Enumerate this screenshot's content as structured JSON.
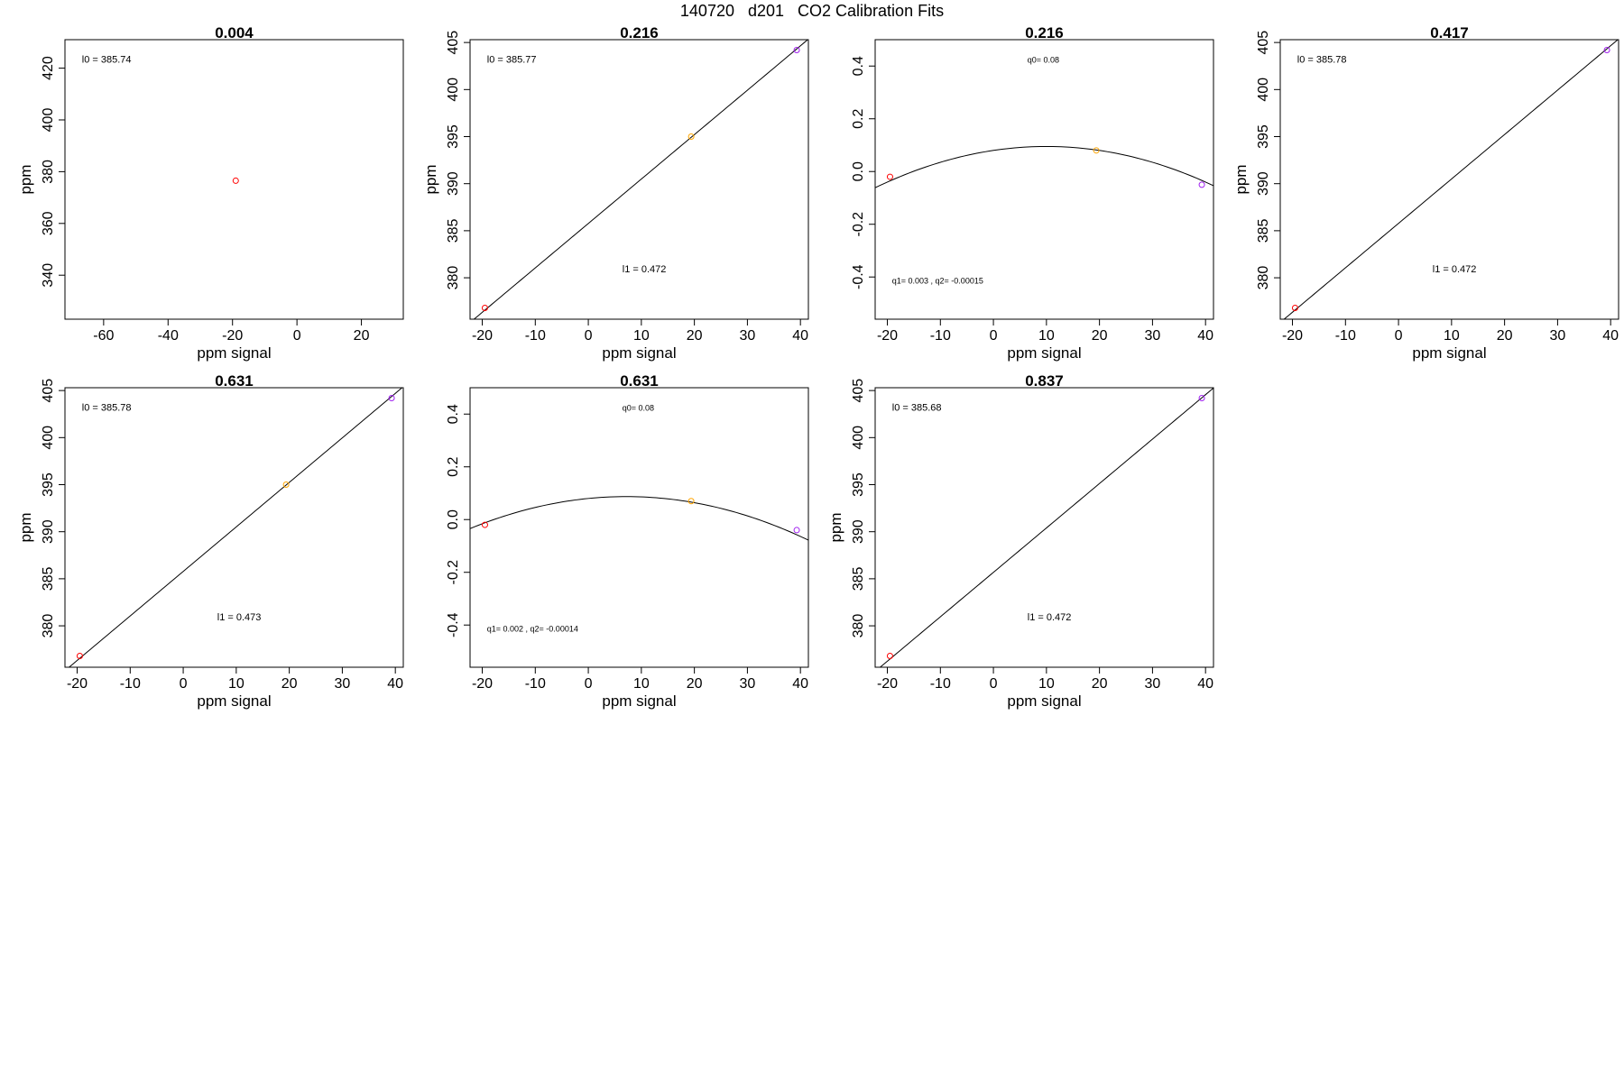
{
  "figure": {
    "title": "140720   d201   CO2 Calibration Fits"
  },
  "chart_data": [
    {
      "type": "scatter",
      "title": "0.004",
      "xlabel": "ppm signal",
      "ylabel": "ppm",
      "xlim": [
        -72,
        33
      ],
      "ylim": [
        323,
        431
      ],
      "xticks": [
        -60,
        -40,
        -20,
        0,
        20
      ],
      "xtick_labels": [
        "-60",
        "-40",
        "-20",
        "0",
        "20"
      ],
      "yticks": [
        340,
        360,
        380,
        400,
        420
      ],
      "ytick_labels": [
        "340",
        "360",
        "380",
        "400",
        "420"
      ],
      "points": [
        {
          "x": -19,
          "y": 376.5,
          "color": "#ff0000"
        }
      ],
      "fit": null,
      "annotations": [
        {
          "text": "l0 =  385.74",
          "ax": 0.05,
          "ay": 0.07,
          "size": 11
        }
      ]
    },
    {
      "type": "scatter",
      "title": "0.216",
      "xlabel": "ppm signal",
      "ylabel": "ppm",
      "xlim": [
        -22.3,
        41.5
      ],
      "ylim": [
        375.6,
        405.3
      ],
      "xticks": [
        -20,
        -10,
        0,
        10,
        20,
        30,
        40
      ],
      "xtick_labels": [
        "-20",
        "-10",
        "0",
        "10",
        "20",
        "30",
        "40"
      ],
      "yticks": [
        380,
        385,
        390,
        395,
        400,
        405
      ],
      "ytick_labels": [
        "380",
        "385",
        "390",
        "395",
        "400",
        "405"
      ],
      "points": [
        {
          "x": -19.5,
          "y": 376.8,
          "color": "#ff0000"
        },
        {
          "x": 19.4,
          "y": 395.0,
          "color": "#ffa500"
        },
        {
          "x": 39.3,
          "y": 404.2,
          "color": "#a020f0"
        }
      ],
      "fit": {
        "kind": "linear",
        "intercept": 385.77,
        "slope": 0.472
      },
      "annotations": [
        {
          "text": "l0 =  385.77",
          "ax": 0.05,
          "ay": 0.07,
          "size": 11
        },
        {
          "text": "l1 =  0.472",
          "ax": 0.45,
          "ay": 0.82,
          "size": 11
        }
      ]
    },
    {
      "type": "scatter",
      "title": "0.216",
      "xlabel": "ppm signal",
      "ylabel": "",
      "xlim": [
        -22.3,
        41.5
      ],
      "ylim": [
        -0.56,
        0.5
      ],
      "xticks": [
        -20,
        -10,
        0,
        10,
        20,
        30,
        40
      ],
      "xtick_labels": [
        "-20",
        "-10",
        "0",
        "10",
        "20",
        "30",
        "40"
      ],
      "yticks": [
        -0.4,
        -0.2,
        0.0,
        0.2,
        0.4
      ],
      "ytick_labels": [
        "-0.4",
        "-0.2",
        "0.0",
        "0.2",
        "0.4"
      ],
      "points": [
        {
          "x": -19.5,
          "y": -0.02,
          "color": "#ff0000"
        },
        {
          "x": 19.4,
          "y": 0.08,
          "color": "#ffa500"
        },
        {
          "x": 39.3,
          "y": -0.05,
          "color": "#a020f0"
        }
      ],
      "fit": {
        "kind": "quadratic",
        "q0": 0.08,
        "q1": 0.003,
        "q2": -0.00015
      },
      "annotations": [
        {
          "text": "q0= 0.08",
          "ax": 0.45,
          "ay": 0.07,
          "size": 9
        },
        {
          "text": "q1= 0.003 , q2= -0.00015",
          "ax": 0.05,
          "ay": 0.86,
          "size": 9
        }
      ]
    },
    {
      "type": "scatter",
      "title": "0.417",
      "xlabel": "ppm signal",
      "ylabel": "ppm",
      "xlim": [
        -22.3,
        41.5
      ],
      "ylim": [
        375.6,
        405.3
      ],
      "xticks": [
        -20,
        -10,
        0,
        10,
        20,
        30,
        40
      ],
      "xtick_labels": [
        "-20",
        "-10",
        "0",
        "10",
        "20",
        "30",
        "40"
      ],
      "yticks": [
        380,
        385,
        390,
        395,
        400,
        405
      ],
      "ytick_labels": [
        "380",
        "385",
        "390",
        "395",
        "400",
        "405"
      ],
      "points": [
        {
          "x": -19.5,
          "y": 376.8,
          "color": "#ff0000"
        },
        {
          "x": 39.3,
          "y": 404.2,
          "color": "#a020f0"
        }
      ],
      "fit": {
        "kind": "linear",
        "intercept": 385.78,
        "slope": 0.472
      },
      "annotations": [
        {
          "text": "l0 =  385.78",
          "ax": 0.05,
          "ay": 0.07,
          "size": 11
        },
        {
          "text": "l1 =  0.472",
          "ax": 0.45,
          "ay": 0.82,
          "size": 11
        }
      ]
    },
    {
      "type": "scatter",
      "title": "0.631",
      "xlabel": "ppm signal",
      "ylabel": "ppm",
      "xlim": [
        -22.3,
        41.5
      ],
      "ylim": [
        375.6,
        405.3
      ],
      "xticks": [
        -20,
        -10,
        0,
        10,
        20,
        30,
        40
      ],
      "xtick_labels": [
        "-20",
        "-10",
        "0",
        "10",
        "20",
        "30",
        "40"
      ],
      "yticks": [
        380,
        385,
        390,
        395,
        400,
        405
      ],
      "ytick_labels": [
        "380",
        "385",
        "390",
        "395",
        "400",
        "405"
      ],
      "points": [
        {
          "x": -19.5,
          "y": 376.8,
          "color": "#ff0000"
        },
        {
          "x": 19.4,
          "y": 395.0,
          "color": "#ffa500"
        },
        {
          "x": 39.3,
          "y": 404.2,
          "color": "#a020f0"
        }
      ],
      "fit": {
        "kind": "linear",
        "intercept": 385.78,
        "slope": 0.473
      },
      "annotations": [
        {
          "text": "l0 =  385.78",
          "ax": 0.05,
          "ay": 0.07,
          "size": 11
        },
        {
          "text": "l1 =  0.473",
          "ax": 0.45,
          "ay": 0.82,
          "size": 11
        }
      ]
    },
    {
      "type": "scatter",
      "title": "0.631",
      "xlabel": "ppm signal",
      "ylabel": "",
      "xlim": [
        -22.3,
        41.5
      ],
      "ylim": [
        -0.56,
        0.5
      ],
      "xticks": [
        -20,
        -10,
        0,
        10,
        20,
        30,
        40
      ],
      "xtick_labels": [
        "-20",
        "-10",
        "0",
        "10",
        "20",
        "30",
        "40"
      ],
      "yticks": [
        -0.4,
        -0.2,
        0.0,
        0.2,
        0.4
      ],
      "ytick_labels": [
        "-0.4",
        "-0.2",
        "0.0",
        "0.2",
        "0.4"
      ],
      "points": [
        {
          "x": -19.5,
          "y": -0.02,
          "color": "#ff0000"
        },
        {
          "x": 19.4,
          "y": 0.07,
          "color": "#ffa500"
        },
        {
          "x": 39.3,
          "y": -0.04,
          "color": "#a020f0"
        }
      ],
      "fit": {
        "kind": "quadratic",
        "q0": 0.08,
        "q1": 0.002,
        "q2": -0.00014
      },
      "annotations": [
        {
          "text": "q0= 0.08",
          "ax": 0.45,
          "ay": 0.07,
          "size": 9
        },
        {
          "text": "q1= 0.002 , q2= -0.00014",
          "ax": 0.05,
          "ay": 0.86,
          "size": 9
        }
      ]
    },
    {
      "type": "scatter",
      "title": "0.837",
      "xlabel": "ppm signal",
      "ylabel": "ppm",
      "xlim": [
        -22.3,
        41.5
      ],
      "ylim": [
        375.6,
        405.3
      ],
      "xticks": [
        -20,
        -10,
        0,
        10,
        20,
        30,
        40
      ],
      "xtick_labels": [
        "-20",
        "-10",
        "0",
        "10",
        "20",
        "30",
        "40"
      ],
      "yticks": [
        380,
        385,
        390,
        395,
        400,
        405
      ],
      "ytick_labels": [
        "380",
        "385",
        "390",
        "395",
        "400",
        "405"
      ],
      "points": [
        {
          "x": -19.5,
          "y": 376.8,
          "color": "#ff0000"
        },
        {
          "x": 39.3,
          "y": 404.2,
          "color": "#a020f0"
        }
      ],
      "fit": {
        "kind": "linear",
        "intercept": 385.68,
        "slope": 0.472
      },
      "annotations": [
        {
          "text": "l0 =  385.68",
          "ax": 0.05,
          "ay": 0.07,
          "size": 11
        },
        {
          "text": "l1 =  0.472",
          "ax": 0.45,
          "ay": 0.82,
          "size": 11
        }
      ]
    }
  ]
}
